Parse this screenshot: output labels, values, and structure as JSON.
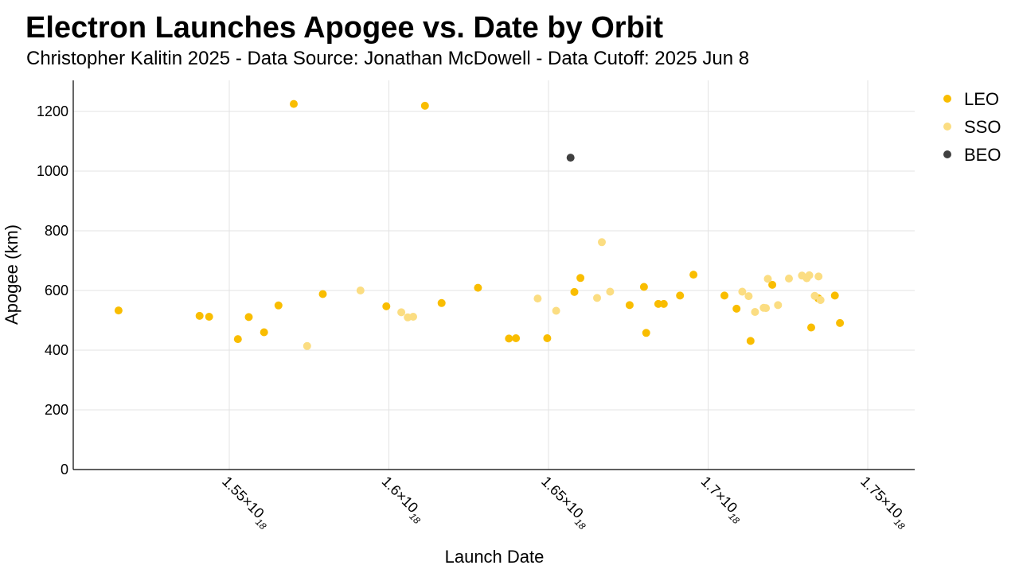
{
  "title": "Electron Launches Apogee vs. Date by Orbit",
  "subtitle": "Christopher Kalitin 2025 - Data Source: Jonathan McDowell - Data Cutoff: 2025 Jun 8",
  "colors": {
    "LEO": "#f9bd00",
    "SSO": "#fbdd82",
    "BEO": "#404040"
  },
  "chart_data": {
    "type": "scatter",
    "title": "Electron Launches Apogee vs. Date by Orbit",
    "subtitle": "Christopher Kalitin 2025 - Data Source: Jonathan McDowell - Data Cutoff: 2025 Jun 8",
    "xlabel": "Launch Date",
    "ylabel": "Apogee (km)",
    "xlim": [
      1.5e+18,
      1.764e+18
    ],
    "ylim": [
      0,
      1300
    ],
    "xticks": [
      {
        "value": 1.55e+18,
        "base": "1.55×10",
        "exp": "18"
      },
      {
        "value": 1.6e+18,
        "base": "1.6×10",
        "exp": "18"
      },
      {
        "value": 1.65e+18,
        "base": "1.65×10",
        "exp": "18"
      },
      {
        "value": 1.7e+18,
        "base": "1.7×10",
        "exp": "18"
      },
      {
        "value": 1.75e+18,
        "base": "1.75×10",
        "exp": "18"
      }
    ],
    "yticks": [
      0,
      200,
      400,
      600,
      800,
      1000,
      1200
    ],
    "grid": true,
    "legend_position": "top-right",
    "series": [
      {
        "name": "LEO",
        "color": "#f9bd00",
        "points": [
          [
            1.5153e+18,
            533
          ],
          [
            1.5407e+18,
            515
          ],
          [
            1.5437e+18,
            512
          ],
          [
            1.5527e+18,
            437
          ],
          [
            1.5561e+18,
            511
          ],
          [
            1.5609e+18,
            460
          ],
          [
            1.5654e+18,
            550
          ],
          [
            1.5702e+18,
            1225
          ],
          [
            1.5793e+18,
            588
          ],
          [
            1.5992e+18,
            547
          ],
          [
            1.6113e+18,
            1219
          ],
          [
            1.6165e+18,
            558
          ],
          [
            1.6279e+18,
            609
          ],
          [
            1.6376e+18,
            439
          ],
          [
            1.6398e+18,
            440
          ],
          [
            1.6496e+18,
            440
          ],
          [
            1.6581e+18,
            595
          ],
          [
            1.66e+18,
            642
          ],
          [
            1.6754e+18,
            551
          ],
          [
            1.6799e+18,
            612
          ],
          [
            1.6806e+18,
            458
          ],
          [
            1.6844e+18,
            555
          ],
          [
            1.6861e+18,
            555
          ],
          [
            1.6912e+18,
            583
          ],
          [
            1.6954e+18,
            653
          ],
          [
            1.7051e+18,
            583
          ],
          [
            1.7089e+18,
            539
          ],
          [
            1.7133e+18,
            431
          ],
          [
            1.7201e+18,
            619
          ],
          [
            1.7323e+18,
            476
          ],
          [
            1.7345e+18,
            574
          ],
          [
            1.7397e+18,
            583
          ],
          [
            1.7413e+18,
            491
          ]
        ]
      },
      {
        "name": "SSO",
        "color": "#fbdd82",
        "points": [
          [
            1.5744e+18,
            414
          ],
          [
            1.5911e+18,
            600
          ],
          [
            1.6039e+18,
            527
          ],
          [
            1.6059e+18,
            510
          ],
          [
            1.6076e+18,
            512
          ],
          [
            1.6466e+18,
            573
          ],
          [
            1.6524e+18,
            532
          ],
          [
            1.6652e+18,
            575
          ],
          [
            1.6667e+18,
            762
          ],
          [
            1.6693e+18,
            596
          ],
          [
            1.7107e+18,
            596
          ],
          [
            1.7127e+18,
            581
          ],
          [
            1.7147e+18,
            528
          ],
          [
            1.7174e+18,
            542
          ],
          [
            1.7181e+18,
            541
          ],
          [
            1.7187e+18,
            639
          ],
          [
            1.7219e+18,
            551
          ],
          [
            1.7253e+18,
            640
          ],
          [
            1.7294e+18,
            650
          ],
          [
            1.7309e+18,
            641
          ],
          [
            1.7334e+18,
            582
          ],
          [
            1.7317e+18,
            651
          ],
          [
            1.7346e+18,
            647
          ],
          [
            1.7352e+18,
            568
          ]
        ]
      },
      {
        "name": "BEO",
        "color": "#404040",
        "points": [
          [
            1.6569e+18,
            1045
          ]
        ]
      }
    ]
  }
}
